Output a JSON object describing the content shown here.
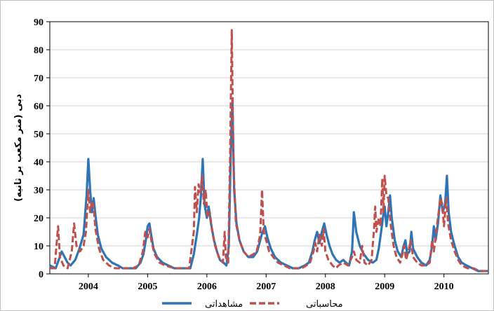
{
  "chart_data": {
    "type": "line",
    "ylabel": "دبی (متر مکعب بر ثانیه)",
    "ylim": [
      0,
      90
    ],
    "y_ticks": [
      "0",
      "10",
      "20",
      "30",
      "40",
      "50",
      "60",
      "70",
      "80",
      "90"
    ],
    "xlim": [
      2003.35,
      2010.75
    ],
    "x_ticks": [
      {
        "label": "2004",
        "value": 2004
      },
      {
        "label": "2005",
        "value": 2005
      },
      {
        "label": "2006",
        "value": 2006
      },
      {
        "label": "2007",
        "value": 2007
      },
      {
        "label": "2008",
        "value": 2008
      },
      {
        "label": "2009",
        "value": 2009
      },
      {
        "label": "2010",
        "value": 2010
      }
    ],
    "grid": "horizontal",
    "legend_position": "bottom",
    "series": [
      {
        "name": "مشاهداتی",
        "color": "#2e75b6",
        "style": "solid",
        "points": [
          [
            2003.35,
            3
          ],
          [
            2003.45,
            2
          ],
          [
            2003.5,
            5
          ],
          [
            2003.55,
            8
          ],
          [
            2003.6,
            6
          ],
          [
            2003.65,
            4
          ],
          [
            2003.7,
            3
          ],
          [
            2003.78,
            5
          ],
          [
            2003.85,
            9
          ],
          [
            2003.92,
            14
          ],
          [
            2003.97,
            28
          ],
          [
            2004.0,
            41
          ],
          [
            2004.03,
            30
          ],
          [
            2004.06,
            22
          ],
          [
            2004.09,
            27
          ],
          [
            2004.12,
            21
          ],
          [
            2004.16,
            14
          ],
          [
            2004.22,
            9
          ],
          [
            2004.3,
            6
          ],
          [
            2004.4,
            4
          ],
          [
            2004.5,
            3
          ],
          [
            2004.58,
            2
          ],
          [
            2004.7,
            2
          ],
          [
            2004.8,
            2
          ],
          [
            2004.88,
            4
          ],
          [
            2004.93,
            7
          ],
          [
            2004.97,
            12
          ],
          [
            2005.0,
            17
          ],
          [
            2005.03,
            18
          ],
          [
            2005.06,
            14
          ],
          [
            2005.1,
            9
          ],
          [
            2005.16,
            6
          ],
          [
            2005.25,
            4
          ],
          [
            2005.35,
            3
          ],
          [
            2005.45,
            2
          ],
          [
            2005.55,
            2
          ],
          [
            2005.65,
            2
          ],
          [
            2005.72,
            2
          ],
          [
            2005.78,
            7
          ],
          [
            2005.83,
            14
          ],
          [
            2005.87,
            20
          ],
          [
            2005.9,
            28
          ],
          [
            2005.93,
            41
          ],
          [
            2005.96,
            25
          ],
          [
            2006.0,
            20
          ],
          [
            2006.03,
            24
          ],
          [
            2006.07,
            18
          ],
          [
            2006.12,
            12
          ],
          [
            2006.17,
            8
          ],
          [
            2006.22,
            5
          ],
          [
            2006.28,
            4
          ],
          [
            2006.33,
            3
          ],
          [
            2006.37,
            10
          ],
          [
            2006.4,
            40
          ],
          [
            2006.43,
            62
          ],
          [
            2006.46,
            30
          ],
          [
            2006.5,
            18
          ],
          [
            2006.55,
            12
          ],
          [
            2006.62,
            8
          ],
          [
            2006.7,
            6
          ],
          [
            2006.78,
            6
          ],
          [
            2006.85,
            8
          ],
          [
            2006.9,
            12
          ],
          [
            2006.94,
            15
          ],
          [
            2006.98,
            17
          ],
          [
            2007.02,
            13
          ],
          [
            2007.08,
            9
          ],
          [
            2007.15,
            6
          ],
          [
            2007.25,
            4
          ],
          [
            2007.35,
            3
          ],
          [
            2007.45,
            2
          ],
          [
            2007.55,
            2
          ],
          [
            2007.65,
            3
          ],
          [
            2007.72,
            4
          ],
          [
            2007.78,
            8
          ],
          [
            2007.82,
            12
          ],
          [
            2007.86,
            15
          ],
          [
            2007.9,
            11
          ],
          [
            2007.94,
            15
          ],
          [
            2007.98,
            18
          ],
          [
            2008.02,
            14
          ],
          [
            2008.07,
            10
          ],
          [
            2008.12,
            7
          ],
          [
            2008.18,
            5
          ],
          [
            2008.24,
            4
          ],
          [
            2008.3,
            5
          ],
          [
            2008.35,
            4
          ],
          [
            2008.4,
            3
          ],
          [
            2008.45,
            8
          ],
          [
            2008.48,
            22
          ],
          [
            2008.52,
            15
          ],
          [
            2008.58,
            10
          ],
          [
            2008.65,
            7
          ],
          [
            2008.72,
            5
          ],
          [
            2008.8,
            4
          ],
          [
            2008.86,
            5
          ],
          [
            2008.9,
            9
          ],
          [
            2008.94,
            15
          ],
          [
            2008.97,
            20
          ],
          [
            2009.0,
            24
          ],
          [
            2009.03,
            17
          ],
          [
            2009.06,
            22
          ],
          [
            2009.09,
            28
          ],
          [
            2009.12,
            20
          ],
          [
            2009.17,
            12
          ],
          [
            2009.22,
            8
          ],
          [
            2009.28,
            6
          ],
          [
            2009.32,
            10
          ],
          [
            2009.35,
            12
          ],
          [
            2009.38,
            7
          ],
          [
            2009.42,
            8
          ],
          [
            2009.45,
            15
          ],
          [
            2009.48,
            9
          ],
          [
            2009.55,
            6
          ],
          [
            2009.62,
            4
          ],
          [
            2009.7,
            3
          ],
          [
            2009.76,
            5
          ],
          [
            2009.8,
            10
          ],
          [
            2009.83,
            17
          ],
          [
            2009.86,
            12
          ],
          [
            2009.9,
            18
          ],
          [
            2009.94,
            28
          ],
          [
            2009.98,
            22
          ],
          [
            2010.02,
            25
          ],
          [
            2010.05,
            35
          ],
          [
            2010.08,
            22
          ],
          [
            2010.12,
            15
          ],
          [
            2010.18,
            10
          ],
          [
            2010.24,
            6
          ],
          [
            2010.3,
            4
          ],
          [
            2010.38,
            3
          ],
          [
            2010.48,
            2
          ],
          [
            2010.58,
            1
          ],
          [
            2010.68,
            1
          ],
          [
            2010.75,
            1
          ]
        ]
      },
      {
        "name": "محاسباتی",
        "color": "#c0504d",
        "style": "dashed",
        "points": [
          [
            2003.35,
            2
          ],
          [
            2003.43,
            2
          ],
          [
            2003.47,
            12
          ],
          [
            2003.49,
            17
          ],
          [
            2003.52,
            6
          ],
          [
            2003.58,
            3
          ],
          [
            2003.65,
            2
          ],
          [
            2003.72,
            8
          ],
          [
            2003.76,
            18
          ],
          [
            2003.8,
            10
          ],
          [
            2003.86,
            8
          ],
          [
            2003.92,
            10
          ],
          [
            2003.96,
            15
          ],
          [
            2004.0,
            30
          ],
          [
            2004.03,
            22
          ],
          [
            2004.06,
            26
          ],
          [
            2004.09,
            24
          ],
          [
            2004.12,
            16
          ],
          [
            2004.18,
            9
          ],
          [
            2004.25,
            5
          ],
          [
            2004.35,
            3
          ],
          [
            2004.45,
            2
          ],
          [
            2004.55,
            2
          ],
          [
            2004.65,
            2
          ],
          [
            2004.75,
            2
          ],
          [
            2004.85,
            3
          ],
          [
            2004.92,
            8
          ],
          [
            2004.96,
            15
          ],
          [
            2005.0,
            13
          ],
          [
            2005.03,
            16
          ],
          [
            2005.07,
            11
          ],
          [
            2005.12,
            7
          ],
          [
            2005.2,
            4
          ],
          [
            2005.3,
            3
          ],
          [
            2005.45,
            2
          ],
          [
            2005.6,
            2
          ],
          [
            2005.7,
            2
          ],
          [
            2005.78,
            15
          ],
          [
            2005.8,
            31
          ],
          [
            2005.83,
            22
          ],
          [
            2005.86,
            32
          ],
          [
            2005.89,
            29
          ],
          [
            2005.92,
            35
          ],
          [
            2005.95,
            25
          ],
          [
            2005.98,
            30
          ],
          [
            2006.01,
            20
          ],
          [
            2006.05,
            22
          ],
          [
            2006.09,
            15
          ],
          [
            2006.14,
            10
          ],
          [
            2006.2,
            6
          ],
          [
            2006.27,
            4
          ],
          [
            2006.3,
            15
          ],
          [
            2006.32,
            6
          ],
          [
            2006.36,
            4
          ],
          [
            2006.39,
            40
          ],
          [
            2006.42,
            87
          ],
          [
            2006.45,
            38
          ],
          [
            2006.49,
            18
          ],
          [
            2006.55,
            12
          ],
          [
            2006.62,
            8
          ],
          [
            2006.7,
            6
          ],
          [
            2006.78,
            7
          ],
          [
            2006.84,
            8
          ],
          [
            2006.9,
            14
          ],
          [
            2006.93,
            30
          ],
          [
            2006.96,
            15
          ],
          [
            2007.0,
            12
          ],
          [
            2007.05,
            8
          ],
          [
            2007.12,
            6
          ],
          [
            2007.2,
            4
          ],
          [
            2007.3,
            3
          ],
          [
            2007.4,
            2
          ],
          [
            2007.5,
            2
          ],
          [
            2007.6,
            2
          ],
          [
            2007.68,
            3
          ],
          [
            2007.74,
            4
          ],
          [
            2007.8,
            8
          ],
          [
            2007.83,
            11
          ],
          [
            2007.86,
            8
          ],
          [
            2007.9,
            14
          ],
          [
            2007.94,
            10
          ],
          [
            2007.97,
            16
          ],
          [
            2008.0,
            8
          ],
          [
            2008.05,
            5
          ],
          [
            2008.12,
            3
          ],
          [
            2008.18,
            2
          ],
          [
            2008.22,
            3
          ],
          [
            2008.3,
            4
          ],
          [
            2008.38,
            3
          ],
          [
            2008.45,
            6
          ],
          [
            2008.48,
            8
          ],
          [
            2008.52,
            5
          ],
          [
            2008.58,
            4
          ],
          [
            2008.62,
            10
          ],
          [
            2008.66,
            4
          ],
          [
            2008.72,
            3
          ],
          [
            2008.78,
            5
          ],
          [
            2008.82,
            16
          ],
          [
            2008.84,
            24
          ],
          [
            2008.86,
            15
          ],
          [
            2008.9,
            20
          ],
          [
            2008.93,
            17
          ],
          [
            2008.96,
            34
          ],
          [
            2008.98,
            22
          ],
          [
            2009.0,
            35
          ],
          [
            2009.03,
            28
          ],
          [
            2009.06,
            27
          ],
          [
            2009.1,
            18
          ],
          [
            2009.15,
            10
          ],
          [
            2009.2,
            6
          ],
          [
            2009.26,
            4
          ],
          [
            2009.3,
            7
          ],
          [
            2009.33,
            10
          ],
          [
            2009.36,
            5
          ],
          [
            2009.4,
            8
          ],
          [
            2009.44,
            12
          ],
          [
            2009.48,
            6
          ],
          [
            2009.55,
            4
          ],
          [
            2009.62,
            3
          ],
          [
            2009.7,
            3
          ],
          [
            2009.76,
            4
          ],
          [
            2009.8,
            12
          ],
          [
            2009.83,
            8
          ],
          [
            2009.87,
            15
          ],
          [
            2009.91,
            22
          ],
          [
            2009.94,
            27
          ],
          [
            2009.97,
            25
          ],
          [
            2010.0,
            17
          ],
          [
            2010.04,
            27
          ],
          [
            2010.07,
            18
          ],
          [
            2010.12,
            12
          ],
          [
            2010.18,
            8
          ],
          [
            2010.24,
            5
          ],
          [
            2010.3,
            3
          ],
          [
            2010.4,
            2
          ],
          [
            2010.5,
            2
          ],
          [
            2010.6,
            1
          ],
          [
            2010.7,
            1
          ],
          [
            2010.75,
            1
          ]
        ]
      }
    ]
  }
}
